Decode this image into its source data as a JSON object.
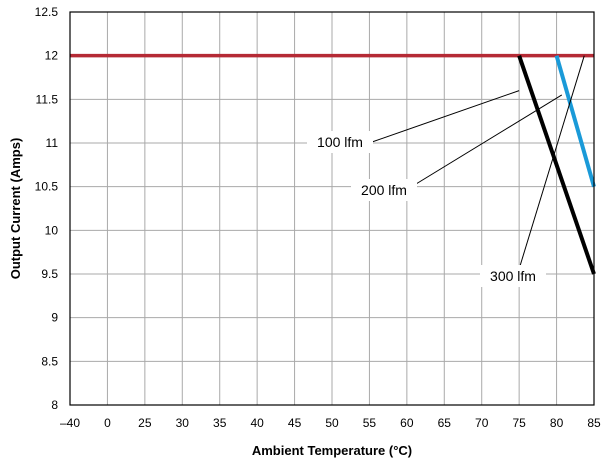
{
  "chart_data": {
    "type": "line",
    "xlabel": "Ambient Temperature (°C)",
    "ylabel": "Output Current (Amps)",
    "x_categories": [
      "–40",
      "0",
      "25",
      "30",
      "35",
      "40",
      "45",
      "50",
      "55",
      "60",
      "65",
      "70",
      "75",
      "80",
      "85"
    ],
    "y_ticks": [
      "8",
      "8.5",
      "9",
      "9.5",
      "10",
      "10.5",
      "11",
      "11.5",
      "12",
      "12.5"
    ],
    "ylim": [
      8,
      12.5
    ],
    "grid": true,
    "series": [
      {
        "color": "#b52a35",
        "points": [
          [
            "–40",
            12
          ],
          [
            "85",
            12
          ]
        ]
      },
      {
        "color": "#000000",
        "points": [
          [
            "75",
            12
          ],
          [
            "85",
            9.5
          ]
        ]
      },
      {
        "color": "#1a9ad8",
        "points": [
          [
            "80",
            12
          ],
          [
            "85",
            10.5
          ]
        ]
      }
    ],
    "annotations": [
      {
        "text": "100 lfm",
        "at": [
          "75",
          11.6
        ]
      },
      {
        "text": "200 lfm",
        "at": [
          "80.7",
          11.55
        ]
      },
      {
        "text": "300 lfm",
        "at": [
          "83.7",
          12
        ]
      }
    ]
  }
}
